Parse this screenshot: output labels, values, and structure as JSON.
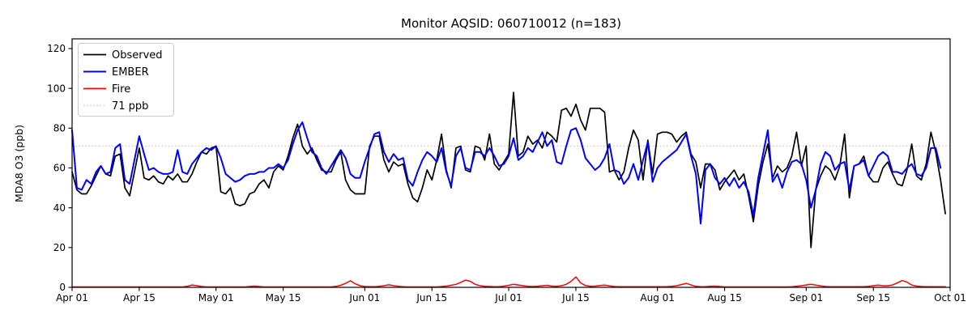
{
  "chart_data": {
    "type": "line",
    "title": "Monitor AQSID: 060710012 (n=183)",
    "ylabel": "MDA8 O3 (ppb)",
    "xlabel": "",
    "grid": false,
    "ylim": [
      0,
      125
    ],
    "yticks": [
      0,
      20,
      40,
      60,
      80,
      100,
      120
    ],
    "n_days": 183,
    "x_start_label": "Apr 01",
    "x_end_label": "Oct 01",
    "x_tick_labels": [
      "Apr 01",
      "Apr 15",
      "May 01",
      "May 15",
      "Jun 01",
      "Jun 15",
      "Jul 01",
      "Jul 15",
      "Aug 01",
      "Aug 15",
      "Sep 01",
      "Sep 15",
      "Oct 01"
    ],
    "x_tick_day_index": [
      0,
      14,
      30,
      44,
      61,
      75,
      91,
      105,
      122,
      136,
      153,
      167,
      183
    ],
    "threshold": {
      "label": "71 ppb",
      "value": 71,
      "color": "#c9c9c9",
      "style": "dotted"
    },
    "legend": {
      "position": "upper-left",
      "entries": [
        "Observed",
        "EMBER",
        "Fire",
        "71 ppb"
      ]
    },
    "series": [
      {
        "name": "Observed",
        "color": "#000000",
        "values": [
          58,
          49,
          47,
          47,
          51,
          56,
          61,
          57,
          56,
          66,
          67,
          50,
          46,
          58,
          70,
          55,
          54,
          56,
          53,
          52,
          56,
          54,
          57,
          53,
          53,
          57,
          63,
          68,
          67,
          70,
          71,
          48,
          47,
          50,
          42,
          41,
          42,
          47,
          48,
          52,
          54,
          50,
          58,
          61,
          59,
          66,
          75,
          82,
          71,
          67,
          70,
          64,
          59,
          58,
          58,
          64,
          68,
          54,
          49,
          47,
          47,
          47,
          71,
          76,
          76,
          64,
          58,
          63,
          61,
          62,
          52,
          45,
          43,
          50,
          59,
          54,
          64,
          77,
          59,
          50,
          70,
          71,
          59,
          58,
          71,
          70,
          64,
          77,
          62,
          59,
          63,
          67,
          98,
          66,
          68,
          76,
          72,
          74,
          70,
          78,
          76,
          73,
          89,
          90,
          86,
          92,
          84,
          79,
          90,
          90,
          90,
          88,
          58,
          59,
          54,
          58,
          70,
          79,
          74,
          54,
          74,
          57,
          77,
          78,
          78,
          77,
          73,
          76,
          78,
          67,
          63,
          50,
          62,
          62,
          59,
          49,
          53,
          56,
          59,
          54,
          57,
          46,
          33,
          51,
          63,
          72,
          55,
          61,
          58,
          60,
          66,
          78,
          61,
          71,
          20,
          49,
          56,
          61,
          59,
          54,
          61,
          77,
          45,
          61,
          62,
          66,
          56,
          53,
          53,
          60,
          63,
          57,
          52,
          51,
          59,
          72,
          56,
          54,
          62,
          78,
          68,
          54,
          37
        ]
      },
      {
        "name": "EMBER",
        "color": "#0000ff",
        "values": [
          79,
          50,
          49,
          54,
          52,
          58,
          61,
          57,
          58,
          70,
          72,
          54,
          52,
          64,
          76,
          67,
          59,
          60,
          58,
          57,
          57,
          58,
          69,
          58,
          57,
          62,
          65,
          68,
          70,
          69,
          71,
          65,
          57,
          55,
          53,
          54,
          56,
          57,
          57,
          58,
          58,
          60,
          60,
          62,
          60,
          64,
          72,
          79,
          83,
          75,
          68,
          66,
          60,
          57,
          61,
          65,
          69,
          65,
          57,
          55,
          55,
          63,
          70,
          77,
          78,
          68,
          63,
          67,
          64,
          65,
          54,
          51,
          58,
          64,
          68,
          66,
          63,
          70,
          58,
          51,
          66,
          70,
          60,
          59,
          68,
          68,
          66,
          70,
          66,
          61,
          62,
          66,
          75,
          64,
          66,
          70,
          68,
          73,
          78,
          71,
          74,
          63,
          62,
          71,
          79,
          80,
          74,
          65,
          62,
          59,
          61,
          65,
          72,
          59,
          58,
          52,
          55,
          62,
          54,
          64,
          73,
          53,
          60,
          63,
          65,
          67,
          69,
          73,
          77,
          66,
          57,
          32,
          59,
          62,
          55,
          52,
          55,
          51,
          55,
          50,
          53,
          48,
          36,
          55,
          67,
          79,
          53,
          57,
          50,
          58,
          63,
          64,
          62,
          54,
          40,
          49,
          62,
          68,
          66,
          59,
          62,
          63,
          49,
          61,
          62,
          64,
          56,
          61,
          66,
          68,
          66,
          58,
          58,
          57,
          60,
          62,
          57,
          56,
          60,
          70,
          70,
          60,
          null
        ]
      },
      {
        "name": "Fire",
        "color": "#ff0000",
        "values": [
          0.2,
          0.2,
          0.2,
          0.2,
          0.2,
          0.2,
          0.2,
          0.2,
          0.2,
          0.2,
          0.2,
          0.2,
          0.2,
          0.2,
          0.2,
          0.2,
          0.2,
          0.2,
          0.2,
          0.2,
          0.2,
          0.2,
          0.2,
          0.2,
          0.5,
          1.2,
          0.8,
          0.4,
          0.2,
          0.2,
          0.2,
          0.2,
          0.2,
          0.2,
          0.2,
          0.2,
          0.2,
          0.4,
          0.6,
          0.4,
          0.2,
          0.2,
          0.2,
          0.2,
          0.2,
          0.2,
          0.2,
          0.2,
          0.2,
          0.2,
          0.2,
          0.2,
          0.2,
          0.2,
          0.2,
          0.5,
          1.0,
          2.0,
          3.3,
          1.8,
          0.8,
          0.4,
          0.3,
          0.3,
          0.5,
          0.8,
          1.3,
          0.8,
          0.5,
          0.3,
          0.2,
          0.2,
          0.2,
          0.2,
          0.2,
          0.2,
          0.2,
          0.4,
          0.6,
          1.0,
          1.5,
          2.5,
          3.6,
          3.0,
          1.5,
          0.8,
          0.5,
          0.4,
          0.3,
          0.3,
          0.6,
          1.0,
          1.5,
          1.2,
          0.8,
          0.5,
          0.4,
          0.5,
          0.8,
          1.0,
          0.6,
          0.5,
          0.8,
          1.5,
          3.0,
          5.2,
          2.2,
          0.9,
          0.5,
          0.6,
          0.9,
          1.1,
          0.7,
          0.4,
          0.3,
          0.3,
          0.3,
          0.3,
          0.3,
          0.3,
          0.3,
          0.3,
          0.3,
          0.3,
          0.3,
          0.5,
          0.8,
          1.4,
          2.0,
          1.2,
          0.5,
          0.3,
          0.3,
          0.5,
          0.6,
          0.4,
          0.2,
          0.2,
          0.2,
          0.2,
          0.2,
          0.2,
          0.2,
          0.2,
          0.2,
          0.2,
          0.2,
          0.2,
          0.2,
          0.2,
          0.3,
          0.5,
          0.8,
          1.2,
          1.5,
          1.1,
          0.7,
          0.4,
          0.3,
          0.3,
          0.3,
          0.3,
          0.3,
          0.3,
          0.3,
          0.3,
          0.5,
          0.8,
          1.1,
          0.8,
          0.8,
          1.2,
          2.2,
          3.4,
          2.6,
          1.2,
          0.6,
          0.4,
          0.3,
          0.3,
          0.3,
          0.3,
          0.3
        ]
      }
    ]
  }
}
